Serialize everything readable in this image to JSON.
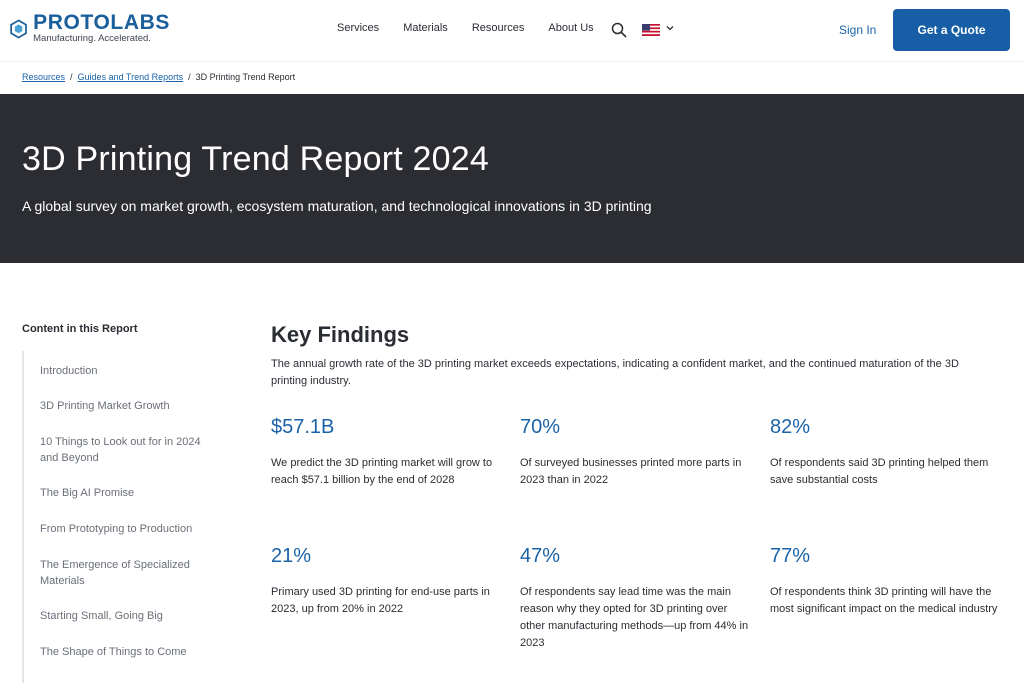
{
  "header": {
    "logo": {
      "name": "PROTOLABS",
      "tagline": "Manufacturing. Accelerated."
    },
    "nav": [
      "Services",
      "Materials",
      "Resources",
      "About Us"
    ],
    "sign_in": "Sign In",
    "cta": "Get a Quote"
  },
  "breadcrumb": {
    "items": [
      "Resources",
      "Guides and Trend Reports"
    ],
    "current": "3D Printing Trend Report",
    "separator": "/"
  },
  "hero": {
    "title": "3D Printing Trend Report 2024",
    "subtitle": "A global survey on market growth, ecosystem maturation, and technological innovations in 3D printing"
  },
  "toc": {
    "heading": "Content in this Report",
    "items": [
      "Introduction",
      "3D Printing Market Growth",
      "10 Things to Look out for in 2024 and Beyond",
      "The Big AI Promise",
      "From Prototyping to Production",
      "The Emergence of Specialized Materials",
      "Starting Small, Going Big",
      "The Shape of Things to Come"
    ]
  },
  "key_findings": {
    "title": "Key Findings",
    "description": "The annual growth rate of the 3D printing market exceeds expectations, indicating a confident market, and the continued maturation of the 3D printing industry.",
    "stats": [
      {
        "value": "$57.1B",
        "text": "We predict the 3D printing market will grow to reach $57.1 billion by the end of 2028"
      },
      {
        "value": "70%",
        "text": "Of surveyed businesses printed more parts in 2023 than in 2022"
      },
      {
        "value": "82%",
        "text": "Of respondents said 3D printing helped them save substantial costs"
      },
      {
        "value": "21%",
        "text": "Primary used 3D printing for end-use parts in 2023, up from 20% in 2022"
      },
      {
        "value": "47%",
        "text": "Of respondents say lead time was the main reason why they opted for 3D printing over other manufacturing methods—up from 44% in 2023"
      },
      {
        "value": "77%",
        "text": "Of respondents think 3D printing will have the most significant impact on the medical industry"
      }
    ]
  },
  "colors": {
    "brand_blue": "#175ea6",
    "link_blue": "#1a63a8",
    "hero_bg": "#2b2d32"
  }
}
